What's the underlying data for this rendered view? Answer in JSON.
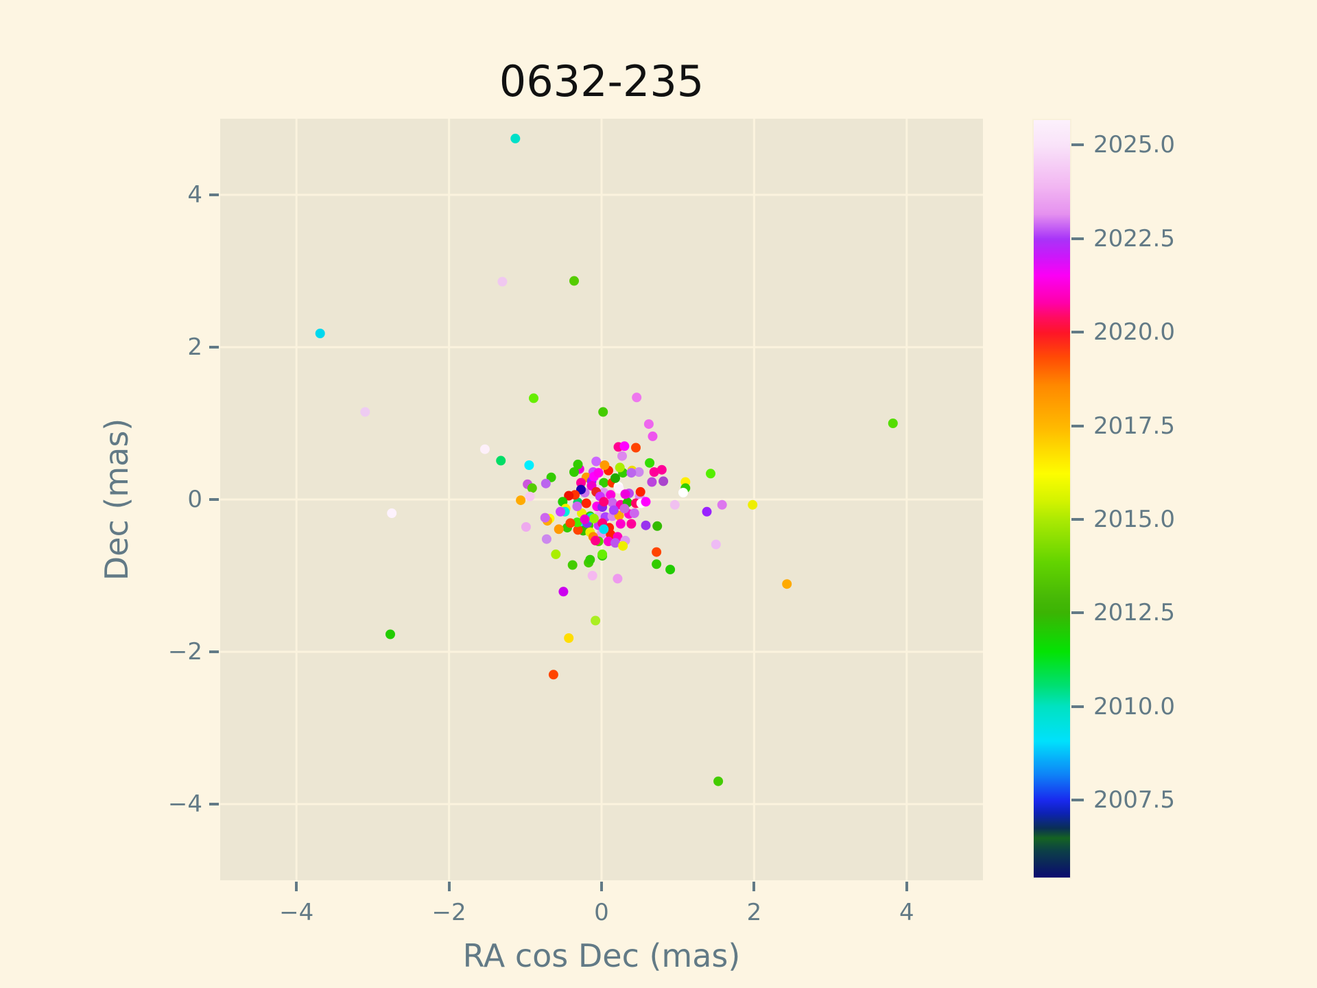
{
  "title": "0632-235",
  "axes": {
    "xlabel": "RA cos Dec (mas)",
    "ylabel": "Dec (mas)",
    "xlim": [
      -5,
      5
    ],
    "ylim": [
      -5,
      5
    ],
    "xticks": [
      -4,
      -2,
      0,
      2,
      4
    ],
    "yticks": [
      -4,
      -2,
      0,
      2,
      4
    ],
    "xtick_labels": [
      "−4",
      "−2",
      "0",
      "2",
      "4"
    ],
    "ytick_labels": [
      "−4",
      "−2",
      "0",
      "2",
      "4"
    ],
    "grid": true
  },
  "colorbar": {
    "vmin": 2005.4,
    "vmax": 2025.7,
    "tick_values": [
      2025.0,
      2022.5,
      2020.0,
      2017.5,
      2015.0,
      2012.5,
      2010.0,
      2007.5
    ],
    "tick_labels": [
      "2025.0",
      "2022.5",
      "2020.0",
      "2017.5",
      "2015.0",
      "2012.5",
      "2010.0",
      "2007.5"
    ],
    "colormap_stops": [
      [
        0.0,
        "#fcf1fc"
      ],
      [
        3.3,
        "#f9e3f9"
      ],
      [
        8.8,
        "#f2b6f2"
      ],
      [
        12.4,
        "#e591ef"
      ],
      [
        15.7,
        "#a834f8"
      ],
      [
        18.0,
        "#cb18fa"
      ],
      [
        20.5,
        "#fb00f5"
      ],
      [
        24.1,
        "#ff00aa"
      ],
      [
        26.0,
        "#ff0b62"
      ],
      [
        28.1,
        "#fe1527"
      ],
      [
        31.3,
        "#ff4a05"
      ],
      [
        35.0,
        "#ff8800"
      ],
      [
        38.6,
        "#ffa800"
      ],
      [
        40.6,
        "#ffb900"
      ],
      [
        46.7,
        "#fdfd00"
      ],
      [
        50.3,
        "#d3f300"
      ],
      [
        52.8,
        "#abe903"
      ],
      [
        58.4,
        "#63d400"
      ],
      [
        63.0,
        "#47b906"
      ],
      [
        65.1,
        "#3bb404"
      ],
      [
        70.2,
        "#04e304"
      ],
      [
        74.7,
        "#00df73"
      ],
      [
        77.4,
        "#00e2c1"
      ],
      [
        82.0,
        "#00e1fc"
      ],
      [
        86.4,
        "#0e83f7"
      ],
      [
        89.8,
        "#1929ee"
      ],
      [
        91.5,
        "#0d22b5"
      ],
      [
        93.5,
        "#0a2f55"
      ],
      [
        94.8,
        "#156322"
      ],
      [
        96.5,
        "#0c3f47"
      ],
      [
        100.0,
        "#0a0a70"
      ]
    ]
  },
  "colors": {
    "figure_bg": "#fdf5e2",
    "axes_bg": "#ece6d3",
    "grid": "#fbf3de",
    "tick_text": "#627a86",
    "title_text": "#111111"
  },
  "chart_data": {
    "type": "scatter",
    "title": "0632-235",
    "xlabel": "RA cos Dec (mas)",
    "ylabel": "Dec (mas)",
    "xlim": [
      -5,
      5
    ],
    "ylim": [
      -5,
      5
    ],
    "color_encoding": "epoch year 2005.4–2025.7 via rainbow colormap (see colorbar)",
    "marker_radius_px": 7,
    "points": [
      [
        -1.13,
        4.74,
        "#00e0c8"
      ],
      [
        -1.3,
        2.86,
        "#f0c8f0"
      ],
      [
        -0.36,
        2.87,
        "#55cc00"
      ],
      [
        -3.69,
        2.18,
        "#00d8ee"
      ],
      [
        -3.1,
        1.15,
        "#eeccf2"
      ],
      [
        -2.75,
        -0.18,
        "#fdf2fd"
      ],
      [
        -2.77,
        -1.77,
        "#22cc00"
      ],
      [
        3.82,
        1.0,
        "#55dd00"
      ],
      [
        2.43,
        -1.11,
        "#ffaa00"
      ],
      [
        1.53,
        -3.7,
        "#44cc00"
      ],
      [
        -0.89,
        1.33,
        "#66ee00"
      ],
      [
        0.02,
        1.15,
        "#44cc00"
      ],
      [
        0.46,
        1.34,
        "#ee77ee"
      ],
      [
        0.62,
        0.99,
        "#ee66ee"
      ],
      [
        0.67,
        0.83,
        "#ee55ee"
      ],
      [
        -1.53,
        0.66,
        "#fdf0fa"
      ],
      [
        -1.32,
        0.51,
        "#00dd66"
      ],
      [
        -0.95,
        0.45,
        "#00eeff"
      ],
      [
        -0.97,
        0.2,
        "#cc55dd"
      ],
      [
        -0.91,
        0.15,
        "#55cc00"
      ],
      [
        -0.94,
        0.04,
        "#f8c8f0"
      ],
      [
        -1.06,
        -0.01,
        "#ffaa00"
      ],
      [
        -0.99,
        -0.36,
        "#eeaaee"
      ],
      [
        1.43,
        0.34,
        "#55ee00"
      ],
      [
        1.1,
        0.23,
        "#ffee00"
      ],
      [
        1.1,
        0.15,
        "#33cc00"
      ],
      [
        1.07,
        0.09,
        "#ffffff"
      ],
      [
        0.96,
        -0.07,
        "#f0c0f0"
      ],
      [
        1.58,
        -0.07,
        "#dd77ee"
      ],
      [
        1.38,
        -0.16,
        "#9922ff"
      ],
      [
        1.98,
        -0.07,
        "#eeee00"
      ],
      [
        1.5,
        -0.59,
        "#eebbf5"
      ],
      [
        -0.38,
        -0.86,
        "#44cc00"
      ],
      [
        -0.17,
        -0.83,
        "#44cc00"
      ],
      [
        0.01,
        -0.74,
        "#33cc00"
      ],
      [
        -0.12,
        -1.0,
        "#f5b8f0"
      ],
      [
        0.21,
        -1.04,
        "#ee99ee"
      ],
      [
        -0.5,
        -1.21,
        "#cc00ee"
      ],
      [
        -0.08,
        -1.59,
        "#aaee22"
      ],
      [
        -0.43,
        -1.82,
        "#ffdd00"
      ],
      [
        -0.63,
        -2.3,
        "#ff4400"
      ],
      [
        0.72,
        -0.85,
        "#33cc00"
      ],
      [
        0.9,
        -0.92,
        "#22cc00"
      ],
      [
        -0.29,
        0.4,
        "#ee00dd"
      ],
      [
        -0.11,
        0.36,
        "#cc44ff"
      ],
      [
        0.09,
        0.38,
        "#ff2200"
      ],
      [
        0.28,
        0.35,
        "#33cc00"
      ],
      [
        0.4,
        0.38,
        "#eedd00"
      ],
      [
        0.49,
        0.36,
        "#cc88ee"
      ],
      [
        -0.2,
        0.29,
        "#ff9900"
      ],
      [
        -0.27,
        0.22,
        "#ff0099"
      ],
      [
        -0.13,
        0.24,
        "#9922ff"
      ],
      [
        0.03,
        0.22,
        "#33cc00"
      ],
      [
        0.14,
        0.22,
        "#ff3300"
      ],
      [
        0.22,
        0.17,
        "#ffffff"
      ],
      [
        0.36,
        0.08,
        "#bb44ee"
      ],
      [
        0.5,
        0.04,
        "#dd88ee"
      ],
      [
        -0.22,
        0.09,
        "#cc77ee"
      ],
      [
        -0.04,
        0.13,
        "#f0d0f8"
      ],
      [
        0.03,
        0.09,
        "#dd99ee"
      ],
      [
        0.12,
        0.06,
        "#ff00dd"
      ],
      [
        -0.31,
        -0.04,
        "#00cc66"
      ],
      [
        -0.2,
        -0.05,
        "#ff2200"
      ],
      [
        -0.06,
        -0.09,
        "#ff00ee"
      ],
      [
        0.01,
        -0.1,
        "#8822ee"
      ],
      [
        0.14,
        -0.04,
        "#cc66ee"
      ],
      [
        0.25,
        -0.07,
        "#ff00aa"
      ],
      [
        0.34,
        -0.04,
        "#22bb00"
      ],
      [
        0.45,
        -0.05,
        "#ff0066"
      ],
      [
        0.52,
        -0.05,
        "#fff8ff"
      ],
      [
        0.58,
        -0.03,
        "#ff00ff"
      ],
      [
        -0.26,
        -0.18,
        "#eeee00"
      ],
      [
        -0.15,
        -0.22,
        "#33cc00"
      ],
      [
        -0.04,
        -0.22,
        "#eeaaee"
      ],
      [
        0.05,
        -0.23,
        "#aa44ff"
      ],
      [
        0.14,
        -0.22,
        "#dd88ee"
      ],
      [
        0.23,
        -0.21,
        "#ffaa00"
      ],
      [
        0.36,
        -0.19,
        "#ff00cc"
      ],
      [
        0.43,
        -0.18,
        "#cc66ee"
      ],
      [
        -0.27,
        -0.32,
        "#00eedd"
      ],
      [
        -0.17,
        -0.34,
        "#33cc00"
      ],
      [
        -0.04,
        -0.34,
        "#cc33ff"
      ],
      [
        0.1,
        -0.37,
        "#ff2200"
      ],
      [
        0.25,
        -0.32,
        "#ff00cc"
      ],
      [
        0.39,
        -0.32,
        "#ff0099"
      ],
      [
        0.58,
        -0.34,
        "#9933ee"
      ],
      [
        -0.24,
        -0.41,
        "#33bb00"
      ],
      [
        -0.15,
        -0.43,
        "#eeee00"
      ],
      [
        0.0,
        -0.45,
        "#dd99ee"
      ],
      [
        0.12,
        -0.46,
        "#ff2200"
      ],
      [
        0.21,
        -0.49,
        "#ff00bb"
      ],
      [
        -0.04,
        -0.55,
        "#55cc00"
      ],
      [
        0.09,
        -0.55,
        "#ff00cc"
      ],
      [
        0.31,
        -0.54,
        "#dd99ee"
      ],
      [
        0.22,
        0.69,
        "#ff0090"
      ],
      [
        0.3,
        0.7,
        "#ff00ff"
      ],
      [
        0.45,
        0.68,
        "#ff4400"
      ],
      [
        0.27,
        0.57,
        "#dd88ee"
      ],
      [
        -0.31,
        0.46,
        "#33cc00"
      ],
      [
        -0.36,
        0.36,
        "#33cc00"
      ],
      [
        -0.07,
        0.5,
        "#cc66ff"
      ],
      [
        0.04,
        0.45,
        "#ff9900"
      ],
      [
        0.24,
        0.42,
        "#aaee00"
      ],
      [
        0.39,
        0.35,
        "#bb66ee"
      ],
      [
        0.63,
        0.48,
        "#33dd00"
      ],
      [
        0.69,
        0.36,
        "#ff0099"
      ],
      [
        0.66,
        0.23,
        "#bb44dd"
      ],
      [
        0.18,
        0.28,
        "#22aa00"
      ],
      [
        -0.1,
        0.3,
        "#ff00ff"
      ],
      [
        -0.13,
        0.18,
        "#ee00cc"
      ],
      [
        -0.04,
        0.35,
        "#ff00ee"
      ],
      [
        -0.66,
        0.29,
        "#33cc00"
      ],
      [
        -0.73,
        0.21,
        "#bb66ee"
      ],
      [
        -0.27,
        0.13,
        "#1a00b0"
      ],
      [
        -0.35,
        0.06,
        "#ff3300"
      ],
      [
        -0.43,
        0.05,
        "#ee1100"
      ],
      [
        -0.07,
        0.1,
        "#ee2222"
      ],
      [
        -0.02,
        0.04,
        "#cc33ff"
      ],
      [
        0.23,
        0.14,
        "#fdf0fd"
      ],
      [
        0.31,
        0.07,
        "#ee00dd"
      ],
      [
        0.51,
        0.1,
        "#ff2200"
      ],
      [
        0.03,
        -0.03,
        "#ff0077"
      ],
      [
        -0.51,
        -0.03,
        "#22cc00"
      ],
      [
        -0.47,
        -0.12,
        "#ffee00"
      ],
      [
        -0.48,
        -0.16,
        "#00eedd"
      ],
      [
        -0.54,
        -0.16,
        "#cc44ff"
      ],
      [
        -0.32,
        -0.09,
        "#cc66ee"
      ],
      [
        -0.45,
        -0.37,
        "#33cc00"
      ],
      [
        -0.56,
        -0.39,
        "#ff9900"
      ],
      [
        -0.31,
        -0.4,
        "#ff4400"
      ],
      [
        -0.19,
        -0.31,
        "#8833ee"
      ],
      [
        0.01,
        -0.31,
        "#ff0077"
      ],
      [
        0.03,
        -0.39,
        "#00ddee"
      ],
      [
        -0.14,
        -0.24,
        "#00e0d0"
      ],
      [
        -0.1,
        -0.25,
        "#99ee00"
      ],
      [
        -0.32,
        -0.3,
        "#44ee00"
      ],
      [
        -0.41,
        -0.31,
        "#ff4400"
      ],
      [
        -0.11,
        -0.49,
        "#ff8800"
      ],
      [
        -0.08,
        -0.54,
        "#ff0088"
      ],
      [
        0.18,
        -0.57,
        "#bb55ee"
      ],
      [
        0.28,
        -0.61,
        "#eeee00"
      ],
      [
        -0.72,
        -0.52,
        "#cc88ee"
      ],
      [
        -0.6,
        -0.72,
        "#aaee00"
      ],
      [
        0.01,
        -0.72,
        "#66ee00"
      ],
      [
        -0.15,
        -0.79,
        "#33cc00"
      ],
      [
        0.73,
        -0.35,
        "#33bb00"
      ],
      [
        0.72,
        -0.69,
        "#ff4400"
      ],
      [
        0.79,
        0.39,
        "#ff0099"
      ],
      [
        0.81,
        0.24,
        "#aa44cc"
      ],
      [
        -0.68,
        -0.25,
        "#ffff00"
      ],
      [
        -0.71,
        -0.28,
        "#ffaa00"
      ],
      [
        -0.74,
        -0.24,
        "#cc66ee"
      ],
      [
        0.16,
        -0.14,
        "#aa44ff"
      ],
      [
        0.3,
        -0.12,
        "#cc66dd"
      ],
      [
        -0.22,
        -0.26,
        "#ee00cc"
      ]
    ]
  }
}
